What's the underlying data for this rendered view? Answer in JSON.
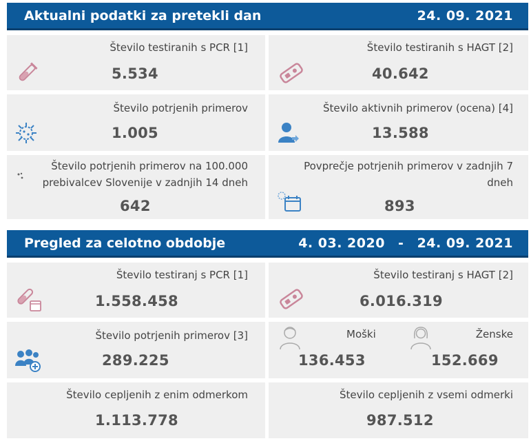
{
  "daily": {
    "title": "Aktualni podatki za pretekli dan",
    "date": "24. 09. 2021",
    "cards": {
      "pcr": {
        "label": "Število testiranih s PCR [1]",
        "value": "5.534",
        "icon": "test-tube-icon"
      },
      "hagt": {
        "label": "Število testiranih s HAGT [2]",
        "value": "40.642",
        "icon": "rapid-test-icon"
      },
      "confirmed": {
        "label": "Število potrjenih primerov",
        "value": "1.005",
        "icon": "virus-icon"
      },
      "active": {
        "label": "Število aktivnih primerov (ocena) [4]",
        "value": "13.588",
        "icon": "person-icon"
      },
      "per100k": {
        "label_line1": "Število potrjenih primerov na 100.000",
        "label_line2": "prebivalcev Slovenije v zadnjih 14 dneh",
        "value": "642",
        "icon": "dots-icon"
      },
      "avg7": {
        "label_line1": "Povprečje potrjenih primerov v zadnjih 7",
        "label_line2": "dneh",
        "value": "893",
        "icon": "calendar-virus-icon"
      }
    }
  },
  "overall": {
    "title": "Pregled za celotno obdobje",
    "date_from": "4. 03. 2020",
    "date_sep": "-",
    "date_to": "24. 09. 2021",
    "cards": {
      "pcr": {
        "label": "Število testiranj s PCR [1]",
        "value": "1.558.458",
        "icon": "test-tube-calendar-icon"
      },
      "hagt": {
        "label": "Število testiranj s HAGT [2]",
        "value": "6.016.319",
        "icon": "rapid-test-icon"
      },
      "confirmed": {
        "label": "Število potrjenih primerov [3]",
        "value": "289.225",
        "icon": "group-add-icon"
      },
      "male": {
        "label": "Moški",
        "value": "136.453",
        "icon": "male-icon"
      },
      "female": {
        "label": "Ženske",
        "value": "152.669",
        "icon": "female-icon"
      },
      "vacc1": {
        "label": "Število cepljenih z enim odmerkom",
        "value": "1.113.778"
      },
      "vacc_all": {
        "label": "Število cepljenih z vsemi odmerki",
        "value": "987.512"
      }
    }
  },
  "colors": {
    "header": "#0d5a9a",
    "card": "#efefef",
    "icon_pink": "#c9869a",
    "icon_blue": "#3b82c4"
  }
}
